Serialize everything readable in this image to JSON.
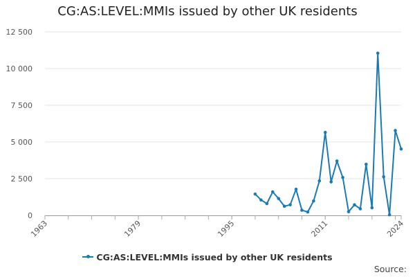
{
  "chart_data": {
    "type": "line",
    "title": "CG:AS:LEVEL:MMIs issued by other UK residents",
    "xlabel": "",
    "ylabel": "",
    "x_ticks": [
      "1963",
      "1979",
      "1995",
      "2011",
      "2024"
    ],
    "xlim": [
      1963,
      2024
    ],
    "y_ticks": [
      "0",
      "2 500",
      "5 000",
      "7 500",
      "10 000",
      "12 500"
    ],
    "ylim": [
      0,
      12500
    ],
    "grid": "horizontal",
    "legend_position": "bottom",
    "series": [
      {
        "name": "CG:AS:LEVEL:MMIs issued by other UK residents",
        "color": "#1a7ab5",
        "x": [
          1999,
          2000,
          2001,
          2002,
          2003,
          2004,
          2005,
          2006,
          2007,
          2008,
          2009,
          2010,
          2011,
          2012,
          2013,
          2014,
          2015,
          2016,
          2017,
          2018,
          2019,
          2020,
          2021,
          2022,
          2023,
          2024
        ],
        "values": [
          1450,
          1050,
          800,
          1600,
          1150,
          620,
          720,
          1780,
          350,
          230,
          980,
          2350,
          5650,
          2280,
          3700,
          2580,
          250,
          720,
          450,
          3480,
          520,
          11050,
          2630,
          40,
          5780,
          4520
        ]
      }
    ]
  },
  "source_label": "Source:"
}
